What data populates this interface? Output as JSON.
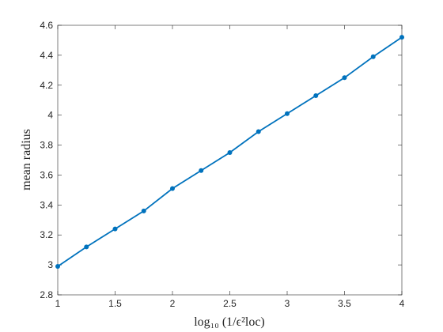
{
  "chart_data": {
    "type": "line",
    "xlabel": "log₁₀ (1/ϵ²loc)",
    "ylabel": "mean radius",
    "x": [
      1,
      1.25,
      1.5,
      1.75,
      2,
      2.25,
      2.5,
      2.75,
      3,
      3.25,
      3.5,
      3.75,
      4
    ],
    "series": [
      {
        "name": "mean radius",
        "color": "#0072bd",
        "values": [
          2.99,
          3.12,
          3.24,
          3.36,
          3.51,
          3.63,
          3.75,
          3.89,
          4.01,
          4.13,
          4.25,
          4.39,
          4.52
        ]
      }
    ],
    "xlim": [
      1,
      4
    ],
    "xticks": [
      1,
      1.5,
      2,
      2.5,
      3,
      3.5,
      4
    ],
    "ylim": [
      2.8,
      4.6
    ],
    "yticks": [
      2.8,
      3,
      3.2,
      3.4,
      3.6,
      3.8,
      4,
      4.2,
      4.4,
      4.6
    ],
    "grid": false
  }
}
